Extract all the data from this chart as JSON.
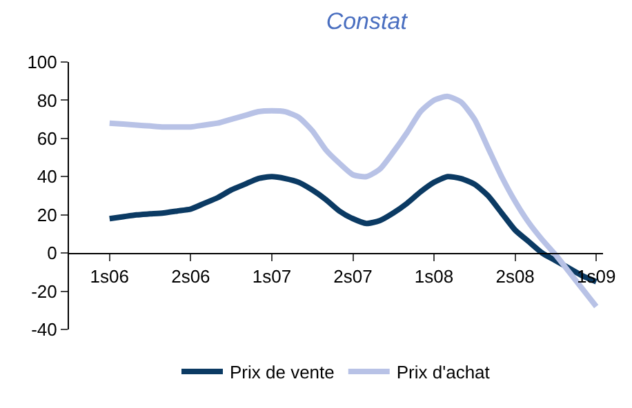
{
  "chart_data": {
    "type": "line",
    "title": "Constat",
    "categories": [
      "1s06",
      null,
      null,
      null,
      null,
      null,
      "2s06",
      null,
      null,
      null,
      null,
      null,
      "1s07",
      null,
      null,
      null,
      null,
      null,
      "2s07",
      null,
      null,
      null,
      null,
      null,
      "1s08",
      null,
      null,
      null,
      null,
      null,
      "2s08",
      null,
      null,
      null,
      null,
      null,
      "1s09"
    ],
    "series": [
      {
        "name": "Prix de vente",
        "color": "#0b3a63",
        "values": [
          18,
          19,
          20,
          20.5,
          21,
          22,
          23,
          26,
          29,
          33,
          36,
          39,
          40,
          39,
          37,
          33,
          28,
          22,
          18,
          15.5,
          17,
          21,
          26,
          32,
          37,
          40,
          39,
          36,
          30,
          21,
          12,
          6,
          0,
          -4,
          -8,
          -12,
          -15
        ]
      },
      {
        "name": "Prix d'achat",
        "color": "#b8c2e6",
        "values": [
          68,
          67.5,
          67,
          66.5,
          66,
          66,
          66,
          67,
          68,
          70,
          72,
          74,
          74.5,
          74,
          71,
          64,
          54,
          47,
          41,
          40,
          44,
          53,
          63,
          74,
          80,
          82,
          79,
          70,
          55,
          40,
          27,
          16,
          7,
          -1,
          -10,
          -19,
          -28
        ]
      }
    ],
    "ylim": [
      -40,
      100
    ],
    "yticks": [
      -40,
      -20,
      0,
      20,
      40,
      60,
      80,
      100
    ],
    "legend": "bottom",
    "line_style": "solid",
    "marker": "none"
  }
}
